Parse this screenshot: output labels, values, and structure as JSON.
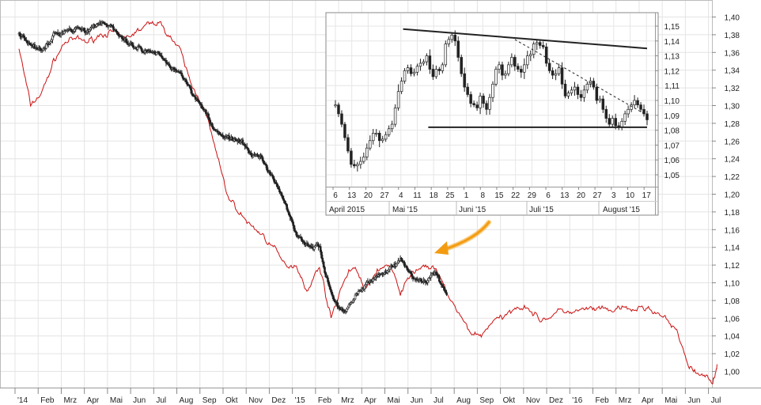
{
  "chart_data": [
    {
      "type": "line",
      "title": "",
      "xlabel": "",
      "ylabel": "",
      "x_ticks": [
        "'14",
        "Feb",
        "Mrz",
        "Apr",
        "Mai",
        "Jun",
        "Jul",
        "Aug",
        "Sep",
        "Okt",
        "Nov",
        "Dez",
        "'15",
        "Feb",
        "Mrz",
        "Apr",
        "Mai",
        "Jun",
        "Jul",
        "Aug",
        "Sep",
        "Okt",
        "Nov",
        "Dez",
        "'16",
        "Feb",
        "Mrz",
        "Apr",
        "Mai",
        "Jun",
        "Jul"
      ],
      "y_ticks": [
        "1,40",
        "1,38",
        "1,36",
        "1,34",
        "1,32",
        "1,30",
        "1,28",
        "1,26",
        "1,24",
        "1,22",
        "1,20",
        "1,18",
        "1,16",
        "1,14",
        "1,12",
        "1,10",
        "1,08",
        "1,06",
        "1,04",
        "1,02",
        "1,00"
      ],
      "ylim": [
        0.98,
        1.41
      ],
      "grid": true,
      "series": [
        {
          "color": "#222222",
          "style": "candlestick",
          "x": [
            0,
            0.5,
            1,
            1.5,
            2,
            2.5,
            3,
            3.5,
            4,
            4.5,
            5,
            5.5,
            6,
            6.5,
            7,
            7.5,
            8,
            8.5,
            9,
            9.5,
            10,
            10.5,
            11,
            11.5,
            12,
            12.5,
            13,
            13.5,
            14,
            14.5,
            15,
            15.5,
            16,
            16.5,
            17,
            17.5,
            18,
            18.5
          ],
          "values": [
            1.383,
            1.37,
            1.36,
            1.379,
            1.385,
            1.388,
            1.385,
            1.395,
            1.39,
            1.372,
            1.365,
            1.36,
            1.357,
            1.346,
            1.337,
            1.314,
            1.298,
            1.27,
            1.263,
            1.26,
            1.247,
            1.24,
            1.218,
            1.19,
            1.155,
            1.142,
            1.14,
            1.085,
            1.067,
            1.083,
            1.098,
            1.107,
            1.118,
            1.125,
            1.108,
            1.1,
            1.112,
            1.09
          ]
        },
        {
          "color": "#cc1111",
          "style": "line",
          "x": [
            0,
            0.5,
            1,
            1.5,
            2,
            2.5,
            3,
            3.5,
            4,
            4.5,
            5,
            5.5,
            6,
            6.5,
            7,
            7.5,
            8,
            8.5,
            9,
            9.5,
            10,
            10.5,
            11,
            11.5,
            12,
            12.5,
            13,
            13.5,
            14,
            14.5,
            15,
            15.5,
            16,
            16.5,
            17,
            17.5,
            18,
            18.5,
            19,
            19.5,
            20,
            20.5,
            21,
            21.5,
            22,
            22.5,
            23,
            23.5,
            24,
            24.5,
            25,
            25.5,
            26,
            26.5,
            27,
            27.5,
            28,
            28.5,
            29,
            29.5,
            30,
            30.2
          ],
          "values": [
            1.365,
            1.3,
            1.315,
            1.35,
            1.372,
            1.375,
            1.372,
            1.38,
            1.383,
            1.375,
            1.382,
            1.39,
            1.395,
            1.38,
            1.36,
            1.32,
            1.3,
            1.25,
            1.2,
            1.18,
            1.165,
            1.155,
            1.14,
            1.12,
            1.12,
            1.09,
            1.12,
            1.06,
            1.1,
            1.12,
            1.09,
            1.115,
            1.12,
            1.09,
            1.11,
            1.12,
            1.115,
            1.09,
            1.065,
            1.045,
            1.04,
            1.058,
            1.06,
            1.074,
            1.073,
            1.058,
            1.062,
            1.069,
            1.066,
            1.07,
            1.07,
            1.068,
            1.071,
            1.069,
            1.072,
            1.068,
            1.058,
            1.042,
            1.005,
            0.995,
            0.99,
            1.005
          ]
        }
      ]
    },
    {
      "type": "line",
      "title": "",
      "x_ticks": [
        "6",
        "13",
        "20",
        "27",
        "4",
        "11",
        "18",
        "25",
        "1",
        "8",
        "15",
        "22",
        "29",
        "6",
        "13",
        "20",
        "27",
        "3",
        "10",
        "17"
      ],
      "month_labels": [
        "April 2015",
        "Mai '15",
        "Juni '15",
        "Juli '15",
        "August '15"
      ],
      "y_ticks": [
        "1,15",
        "1,14",
        "1,13",
        "1,12",
        "1,11",
        "1,10",
        "1,09",
        "1,08",
        "1,07",
        "1,06",
        "1,05"
      ],
      "ylim": [
        1.04,
        1.157
      ],
      "grid": true,
      "series": [
        {
          "color": "#222222",
          "style": "candlestick",
          "x": [
            0,
            1,
            2,
            3,
            4,
            5,
            6,
            7,
            8,
            9,
            10,
            11,
            12,
            13,
            14,
            15,
            16,
            17,
            18,
            19,
            20,
            21,
            22,
            23,
            24,
            25,
            26,
            27,
            28,
            29,
            30,
            31,
            32,
            33,
            34,
            35,
            36,
            37,
            38,
            39,
            40,
            41,
            42,
            43,
            44,
            45,
            46,
            47,
            48,
            49,
            50,
            51,
            52,
            53,
            54,
            55,
            56,
            57,
            58,
            59,
            60,
            61,
            62,
            63,
            64,
            65,
            66,
            67,
            68,
            69,
            70,
            71,
            72,
            73,
            74,
            75,
            76,
            77,
            78,
            79,
            80,
            81,
            82,
            83,
            84,
            85,
            86,
            87,
            88,
            89,
            90,
            91,
            92,
            93,
            94,
            95,
            96,
            97,
            98,
            99
          ],
          "values": [
            1.097,
            1.091,
            1.084,
            1.075,
            1.066,
            1.057,
            1.056,
            1.057,
            1.059,
            1.062,
            1.068,
            1.073,
            1.078,
            1.078,
            1.073,
            1.074,
            1.077,
            1.081,
            1.084,
            1.095,
            1.106,
            1.113,
            1.12,
            1.122,
            1.118,
            1.119,
            1.123,
            1.125,
            1.126,
            1.13,
            1.121,
            1.116,
            1.121,
            1.12,
            1.124,
            1.138,
            1.141,
            1.144,
            1.14,
            1.129,
            1.118,
            1.109,
            1.104,
            1.098,
            1.097,
            1.095,
            1.103,
            1.098,
            1.094,
            1.102,
            1.111,
            1.121,
            1.124,
            1.117,
            1.118,
            1.124,
            1.129,
            1.123,
            1.121,
            1.119,
            1.124,
            1.13,
            1.131,
            1.138,
            1.139,
            1.137,
            1.136,
            1.125,
            1.12,
            1.117,
            1.118,
            1.122,
            1.111,
            1.103,
            1.105,
            1.107,
            1.109,
            1.104,
            1.102,
            1.107,
            1.111,
            1.113,
            1.109,
            1.1,
            1.101,
            1.094,
            1.088,
            1.084,
            1.088,
            1.083,
            1.082,
            1.086,
            1.091,
            1.094,
            1.097,
            1.1,
            1.097,
            1.094,
            1.091,
            1.087
          ]
        }
      ],
      "trendlines": [
        {
          "style": "solid",
          "from": [
            21.5,
            1.148
          ],
          "to": [
            99,
            1.135
          ]
        },
        {
          "style": "solid",
          "from": [
            29.5,
            1.082
          ],
          "to": [
            99,
            1.082
          ]
        },
        {
          "style": "dashed",
          "from": [
            57,
            1.141
          ],
          "to": [
            99,
            1.09
          ]
        }
      ]
    }
  ]
}
